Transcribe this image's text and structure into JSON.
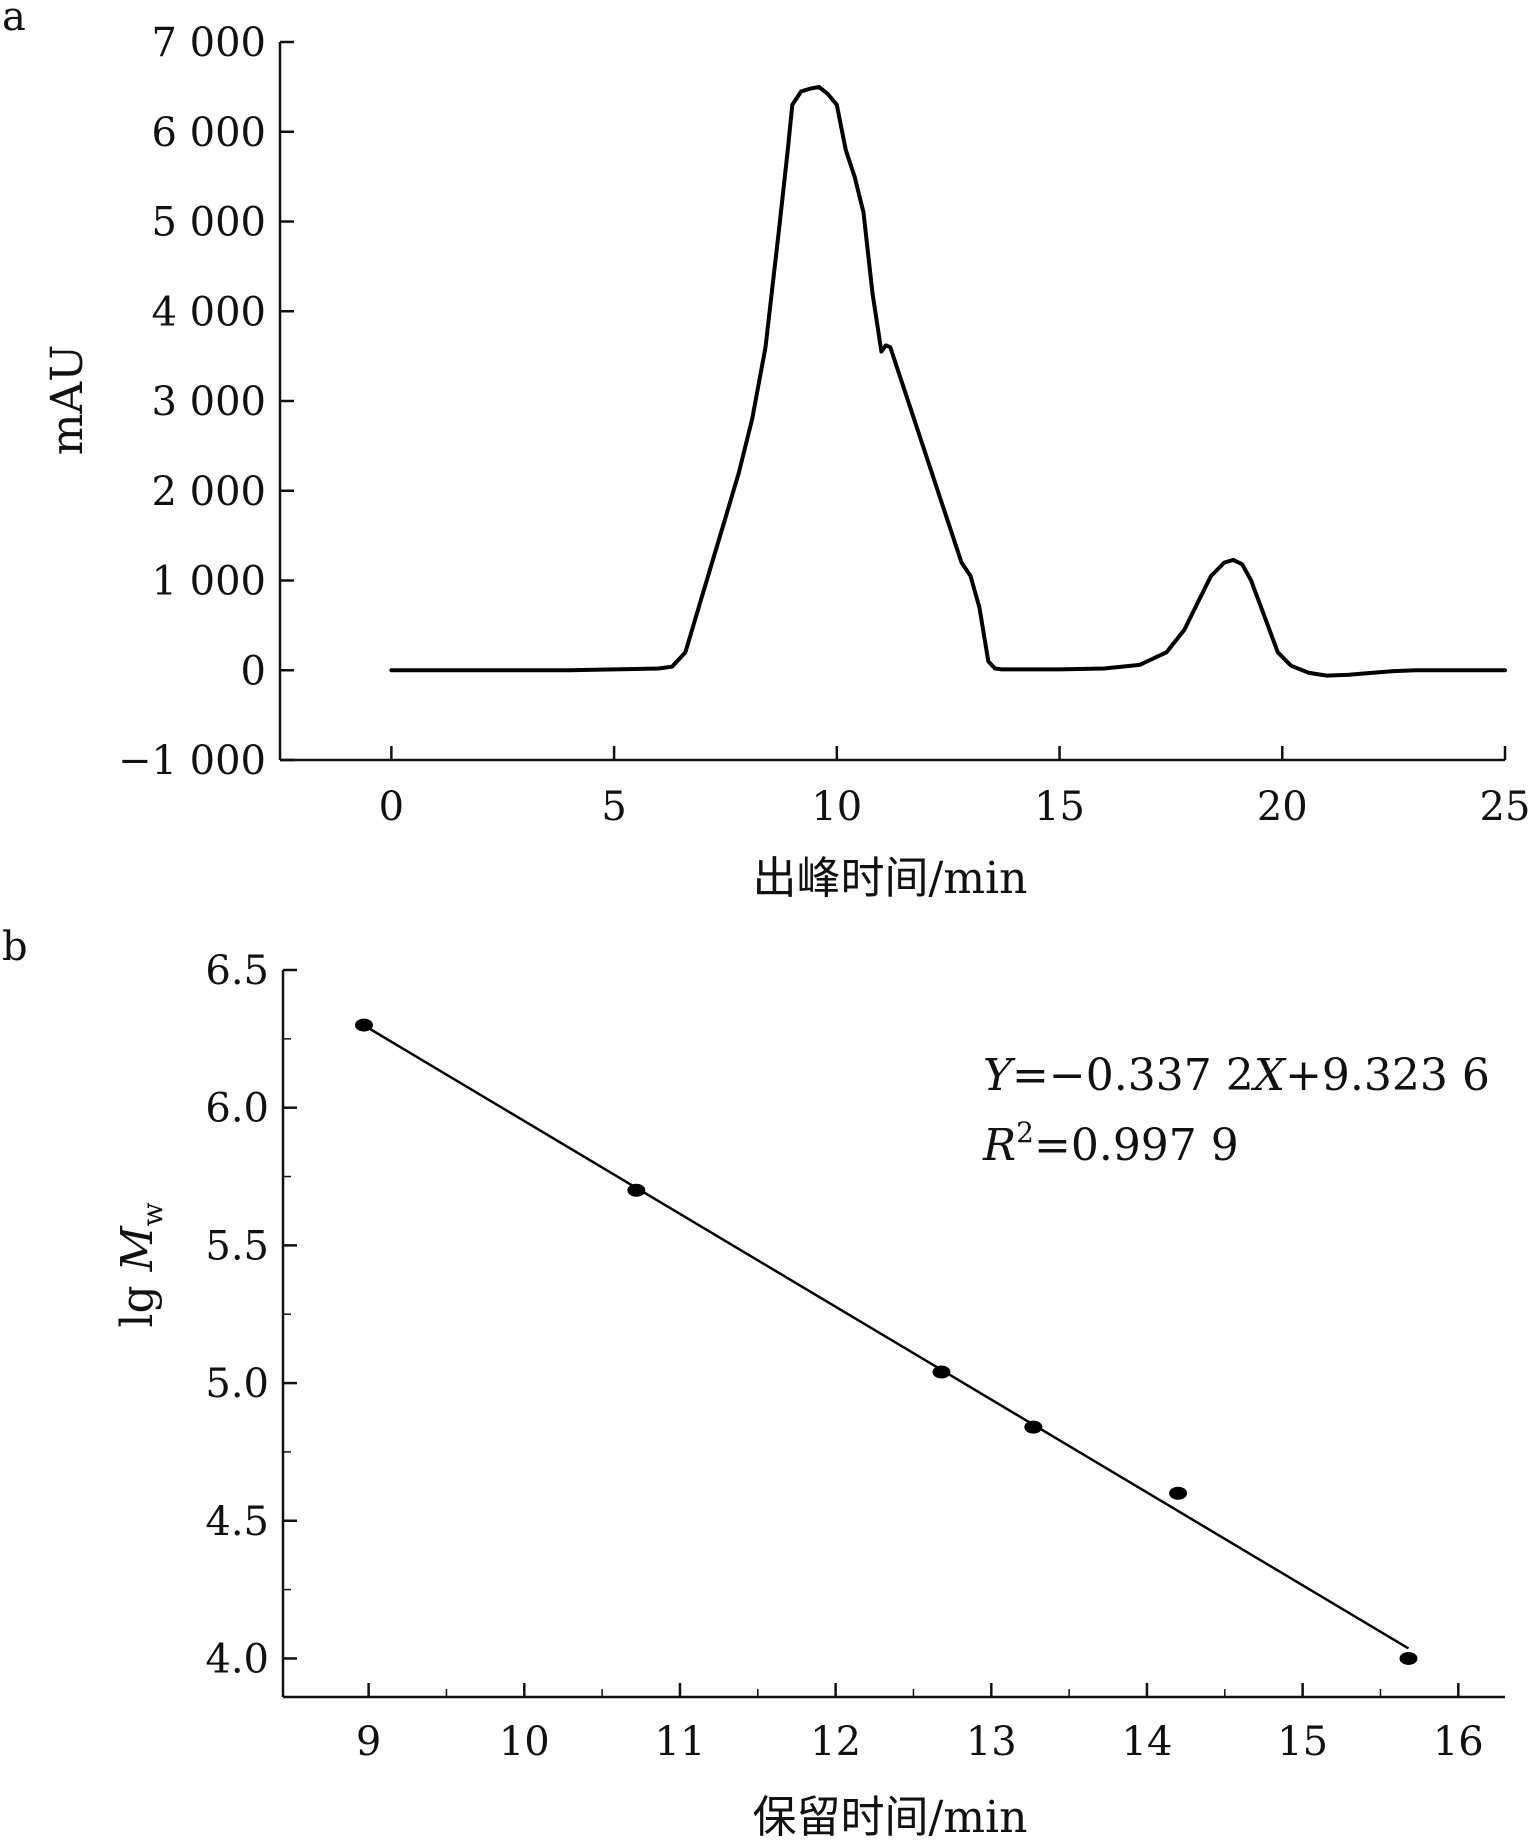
{
  "chart_data": [
    {
      "panel": "a",
      "type": "line",
      "title": "",
      "xlabel": "出峰时间/min",
      "ylabel": "mAU",
      "xlim": [
        -2.5,
        25
      ],
      "ylim": [
        -1000,
        7000
      ],
      "x_ticks": [
        0,
        5,
        10,
        15,
        20,
        25
      ],
      "x_tick_labels": [
        "0",
        "5",
        "10",
        "15",
        "20",
        "25"
      ],
      "y_ticks": [
        -1000,
        0,
        1000,
        2000,
        3000,
        4000,
        5000,
        6000,
        7000
      ],
      "y_tick_labels": [
        "−1 000",
        "0",
        "1 000",
        "2 000",
        "3 000",
        "4 000",
        "5 000",
        "6 000",
        "7 000"
      ],
      "grid": false,
      "series": [
        {
          "x": [
            0,
            2,
            4,
            5,
            6,
            6.3,
            6.6,
            6.9,
            7.2,
            7.5,
            7.8,
            8.1,
            8.4,
            8.7,
            8.9,
            9.0,
            9.2,
            9.4,
            9.6,
            9.8,
            10.0,
            10.2,
            10.4,
            10.6,
            10.8,
            11.0,
            11.1,
            11.2,
            11.4,
            11.6,
            11.8,
            12.0,
            12.2,
            12.4,
            12.6,
            12.8,
            13.0,
            13.2,
            13.4,
            13.55,
            13.7,
            14.0,
            15.0,
            16.0,
            16.8,
            17.4,
            17.8,
            18.1,
            18.4,
            18.7,
            18.9,
            19.1,
            19.3,
            19.6,
            19.9,
            20.2,
            20.6,
            21.0,
            21.5,
            22.0,
            22.5,
            23.0,
            24.0,
            25.0
          ],
          "y": [
            0,
            0,
            0,
            10,
            20,
            40,
            200,
            700,
            1200,
            1700,
            2200,
            2800,
            3600,
            4900,
            5800,
            6300,
            6450,
            6480,
            6500,
            6420,
            6300,
            5800,
            5500,
            5100,
            4200,
            3550,
            3620,
            3600,
            3300,
            3000,
            2700,
            2400,
            2100,
            1800,
            1500,
            1200,
            1050,
            700,
            100,
            20,
            10,
            10,
            10,
            20,
            60,
            200,
            450,
            750,
            1050,
            1200,
            1230,
            1180,
            1000,
            600,
            200,
            50,
            -30,
            -60,
            -50,
            -30,
            -10,
            0,
            0,
            0
          ]
        }
      ]
    },
    {
      "panel": "b",
      "type": "scatter",
      "title": "",
      "xlabel": "保留时间/min",
      "ylabel": "lg M_w",
      "ylabel_parts": [
        "lg ",
        "M",
        "w"
      ],
      "xlim": [
        8.45,
        16.3
      ],
      "ylim": [
        3.86,
        6.5
      ],
      "x_ticks": [
        9,
        10,
        11,
        12,
        13,
        14,
        15,
        16
      ],
      "x_tick_labels": [
        "9",
        "10",
        "11",
        "12",
        "13",
        "14",
        "15",
        "16"
      ],
      "y_ticks": [
        4.0,
        4.5,
        5.0,
        5.5,
        6.0,
        6.5
      ],
      "y_tick_labels": [
        "4.0",
        "4.5",
        "5.0",
        "5.5",
        "6.0",
        "6.5"
      ],
      "grid": false,
      "series": [
        {
          "x": [
            8.97,
            10.72,
            12.68,
            13.27,
            14.2,
            15.68
          ],
          "y": [
            6.3,
            5.7,
            5.04,
            4.84,
            4.6,
            4.0
          ]
        }
      ],
      "fit": {
        "slope": -0.3372,
        "intercept": 9.3236,
        "x_range": [
          8.97,
          15.68
        ]
      },
      "annotations": {
        "equation_y": "Y",
        "equation_mid": "=−0.337 2",
        "equation_x": "X",
        "equation_end": "+9.323 6",
        "r2_r": "R",
        "r2_sup": "2",
        "r2_val": "=0.997 9"
      }
    }
  ],
  "panel_labels": [
    "a",
    "b"
  ]
}
